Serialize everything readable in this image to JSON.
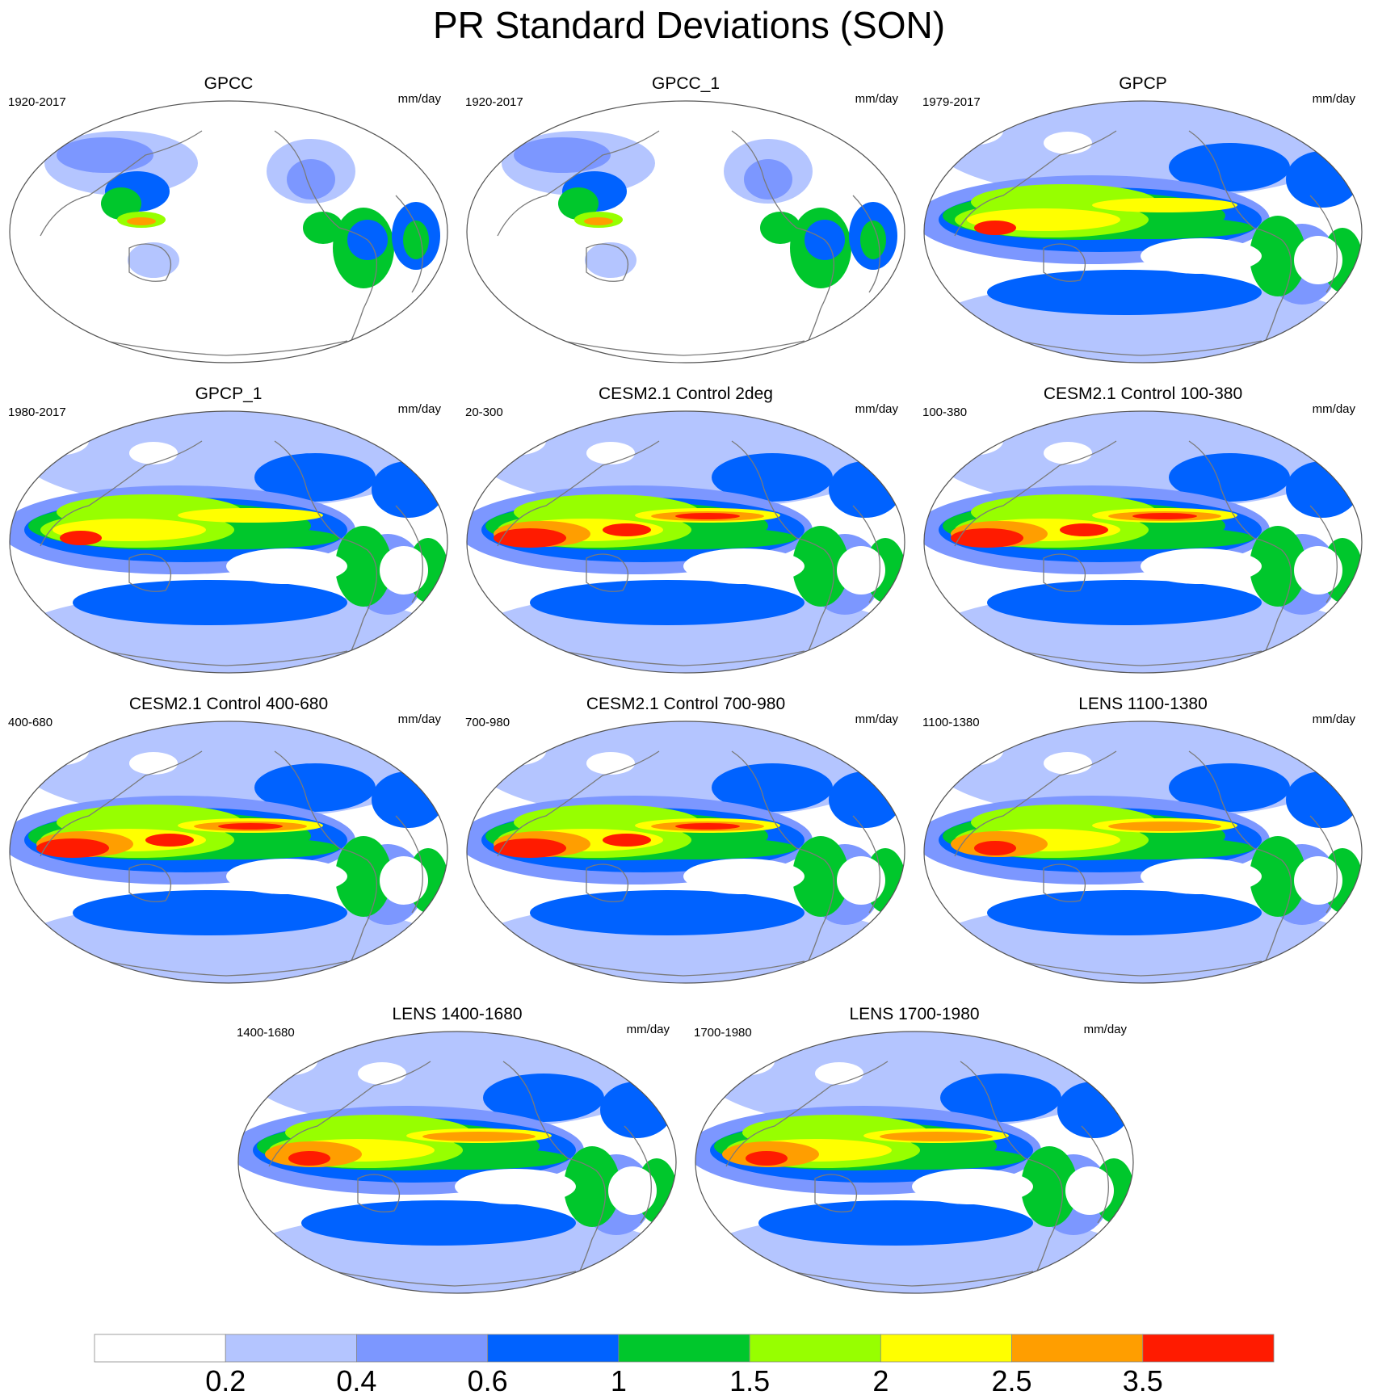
{
  "title": "PR Standard Deviations (SON)",
  "chart_data": {
    "type": "contour map panels",
    "projection": "global ellipse (Robinson-like)",
    "units": "mm/day",
    "levels": [
      0.2,
      0.4,
      0.6,
      1,
      1.5,
      2,
      2.5,
      3.5
    ],
    "level_labels": [
      "0.2",
      "0.4",
      "0.6",
      "1",
      "1.5",
      "2",
      "2.5",
      "3.5"
    ],
    "colors": [
      "#ffffff",
      "#b4c5ff",
      "#7c97ff",
      "#0062ff",
      "#00c72c",
      "#97ff00",
      "#ffff00",
      "#ff9e00",
      "#ff1b00"
    ],
    "panels": [
      {
        "title": "GPCC",
        "years": "1920-2017",
        "units": "mm/day",
        "kind": "land"
      },
      {
        "title": "GPCC_1",
        "years": "1920-2017",
        "units": "mm/day",
        "kind": "land"
      },
      {
        "title": "GPCP",
        "years": "1979-2017",
        "units": "mm/day",
        "kind": "obs"
      },
      {
        "title": "GPCP_1",
        "years": "1980-2017",
        "units": "mm/day",
        "kind": "obs"
      },
      {
        "title": "CESM2.1 Control 2deg",
        "years": "20-300",
        "units": "mm/day",
        "kind": "model-strong"
      },
      {
        "title": "CESM2.1 Control 100-380",
        "years": "100-380",
        "units": "mm/day",
        "kind": "model-strong"
      },
      {
        "title": "CESM2.1 Control 400-680",
        "years": "400-680",
        "units": "mm/day",
        "kind": "model-strong"
      },
      {
        "title": "CESM2.1 Control 700-980",
        "years": "700-980",
        "units": "mm/day",
        "kind": "model-strong"
      },
      {
        "title": "LENS 1100-1380",
        "years": "1100-1380",
        "units": "mm/day",
        "kind": "model"
      },
      {
        "title": "LENS 1400-1680",
        "years": "1400-1680",
        "units": "mm/day",
        "kind": "model"
      },
      {
        "title": "LENS 1700-1980",
        "years": "1700-1980",
        "units": "mm/day",
        "kind": "model"
      }
    ]
  }
}
